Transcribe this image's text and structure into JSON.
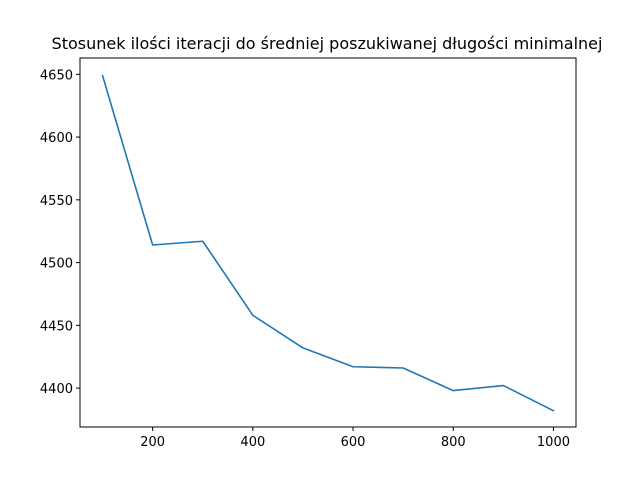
{
  "chart_data": {
    "type": "line",
    "title": "Stosunek ilości iteracji do średniej poszukiwanej długości minimalnej",
    "xlabel": "",
    "ylabel": "",
    "x": [
      100,
      200,
      300,
      400,
      500,
      600,
      700,
      800,
      900,
      1000
    ],
    "series": [
      {
        "values": [
          4649,
          4514,
          4517,
          4458,
          4432,
          4417,
          4416,
          4398,
          4402,
          4382
        ],
        "color": "#1f77b4"
      }
    ],
    "xlim": [
      55,
      1045
    ],
    "ylim": [
      4369,
      4663
    ],
    "xticks": [
      200,
      400,
      600,
      800,
      1000
    ],
    "yticks": [
      4400,
      4450,
      4500,
      4550,
      4600,
      4650
    ],
    "grid": false,
    "legend": false
  }
}
